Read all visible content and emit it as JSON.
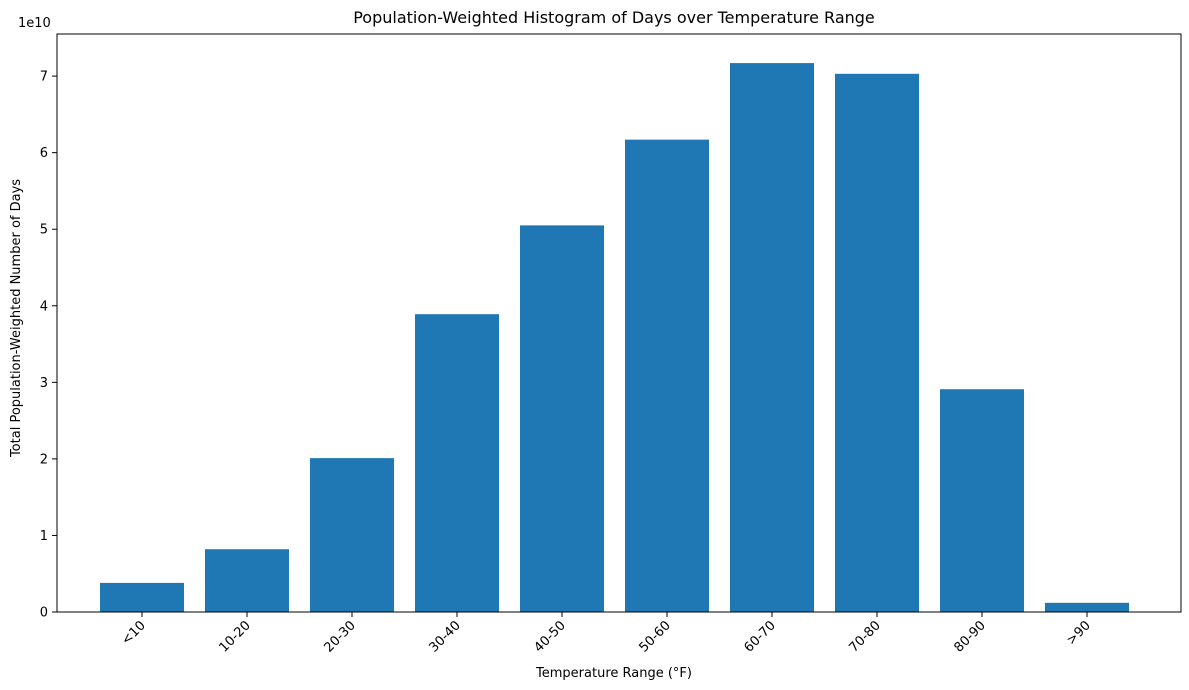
{
  "chart_data": {
    "type": "bar",
    "title": "Population-Weighted Histogram of Days over Temperature Range",
    "xlabel": "Temperature Range (°F)",
    "ylabel": "Total Population-Weighted Number of Days",
    "offset_label": "1e10",
    "categories": [
      "<10",
      "10-20",
      "20-30",
      "30-40",
      "40-50",
      "50-60",
      "60-70",
      "70-80",
      "80-90",
      ">90"
    ],
    "values": [
      3.8,
      8.2,
      20.1,
      38.9,
      50.5,
      61.7,
      71.7,
      70.3,
      29.1,
      1.2
    ],
    "value_scale": 1000000000,
    "ylim": [
      0,
      75.5
    ],
    "yticks": [
      0,
      10,
      20,
      30,
      40,
      50,
      60,
      70
    ],
    "ytick_labels": [
      "0",
      "1",
      "2",
      "3",
      "4",
      "5",
      "6",
      "7"
    ],
    "bar_color": "#1f77b4",
    "grid": false,
    "legend": "none"
  }
}
